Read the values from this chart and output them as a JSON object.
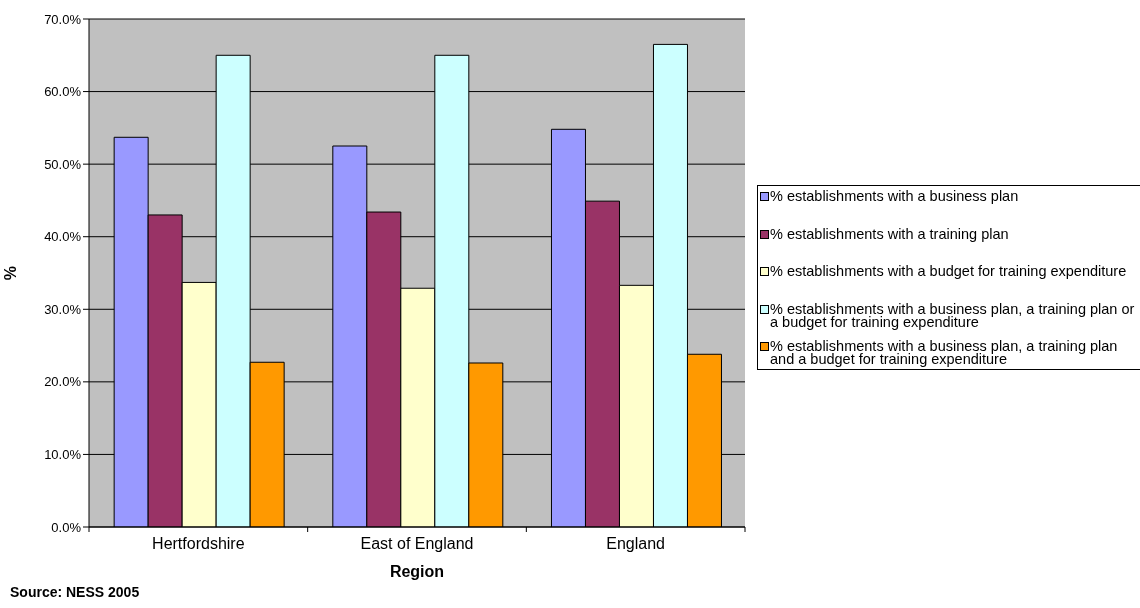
{
  "chart_data": {
    "type": "bar",
    "xlabel": "Region",
    "ylabel": "%",
    "annotations": [
      "Source: NESS 2005"
    ],
    "categories": [
      "Hertfordshire",
      "East of England",
      "England"
    ],
    "series": [
      {
        "name": "% establishments with a business plan",
        "color": "#9999ff",
        "values": [
          53.7,
          52.5,
          54.8
        ]
      },
      {
        "name": "% establishments with a training plan",
        "color": "#993366",
        "values": [
          43.0,
          43.4,
          44.9
        ]
      },
      {
        "name": "% establishments with a budget for training expenditure",
        "color": "#ffffcc",
        "values": [
          33.7,
          32.9,
          33.3
        ]
      },
      {
        "name": "% establishments with a business plan, a training plan or a budget for training expenditure",
        "color": "#ccffff",
        "values": [
          65.0,
          65.0,
          66.5
        ]
      },
      {
        "name": "% establishments with a business plan, a training plan and a budget for training expenditure",
        "color": "#ff9900",
        "values": [
          22.7,
          22.6,
          23.8
        ]
      }
    ],
    "ylim": [
      0,
      70
    ],
    "yticks": [
      {
        "value": 0,
        "label": "0.0%"
      },
      {
        "value": 10,
        "label": "10.0%"
      },
      {
        "value": 20,
        "label": "20.0%"
      },
      {
        "value": 30,
        "label": "30.0%"
      },
      {
        "value": 40,
        "label": "40.0%"
      },
      {
        "value": 50,
        "label": "50.0%"
      },
      {
        "value": 60,
        "label": "60.0%"
      },
      {
        "value": 70,
        "label": "70.0%"
      }
    ],
    "grid": "y",
    "legend": "right"
  }
}
